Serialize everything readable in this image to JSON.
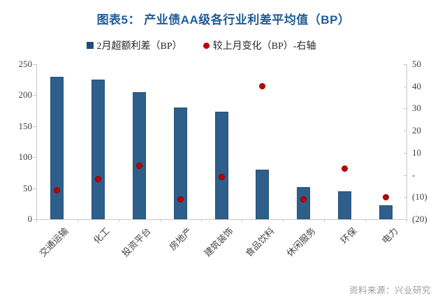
{
  "header": {
    "title": "图表5： 产业债AA级各行业利差平均值（BP）",
    "title_color": "#1f5c99"
  },
  "legend": {
    "items": [
      {
        "label": "2月超额利差（BP）",
        "marker": "square",
        "color": "#1f4e79"
      },
      {
        "label": "较上月变化（BP）-右轴",
        "marker": "circle",
        "color": "#c00000"
      }
    ]
  },
  "footer": {
    "source": "资料来源：兴业研究"
  },
  "chart_data": {
    "type": "bar",
    "title": "图表5： 产业债AA级各行业利差平均值（BP）",
    "categories": [
      "交通运输",
      "化工",
      "投资平台",
      "房地产",
      "建筑装饰",
      "食品饮料",
      "休闲服务",
      "环保",
      "电力"
    ],
    "series": [
      {
        "name": "2月超额利差（BP）",
        "type": "bar",
        "axis": "left",
        "color": "#2e5f8a",
        "values": [
          230,
          225,
          205,
          180,
          173,
          80,
          52,
          45,
          22
        ]
      },
      {
        "name": "较上月变化（BP）-右轴",
        "type": "scatter",
        "axis": "right",
        "color": "#c00000",
        "values": [
          -7,
          -2,
          4,
          -11,
          -1,
          40,
          -11,
          3,
          -10
        ]
      }
    ],
    "left_axis": {
      "min": 0,
      "max": 250,
      "ticks": [
        0,
        50,
        100,
        150,
        200,
        250
      ]
    },
    "right_axis": {
      "min": -20,
      "max": 50,
      "ticks": [
        -20,
        -10,
        0,
        10,
        20,
        30,
        40,
        50
      ],
      "zero_label": "-",
      "negative_format": "parentheses"
    },
    "grid": false,
    "legend_position": "top"
  }
}
